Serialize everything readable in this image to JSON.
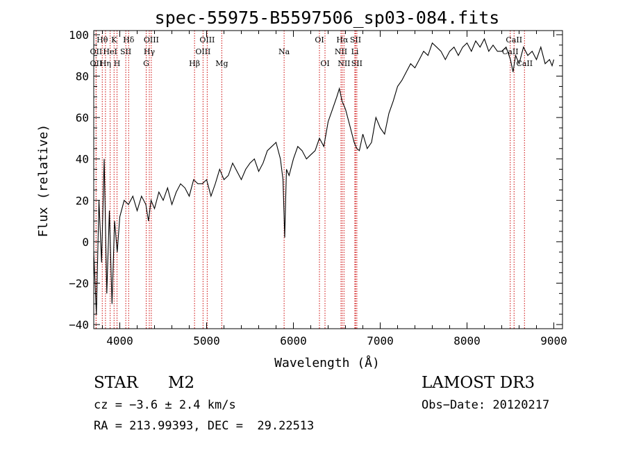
{
  "chart_data": {
    "type": "line",
    "title": "spec-55975-B5597506_sp03-084.fits",
    "xlabel": "Wavelength (Å)",
    "ylabel": "Flux (relative)",
    "xlim": [
      3700,
      9100
    ],
    "ylim": [
      -42,
      102
    ],
    "xticks": [
      4000,
      5000,
      6000,
      7000,
      8000,
      9000
    ],
    "yticks": [
      -40,
      -20,
      0,
      20,
      40,
      60,
      80,
      100
    ],
    "grid": false,
    "line_color": "#000000",
    "marker_color": "#cc0000",
    "series": [
      {
        "name": "spectrum",
        "x": [
          3700,
          3730,
          3760,
          3790,
          3820,
          3850,
          3880,
          3910,
          3940,
          3970,
          4000,
          4050,
          4100,
          4150,
          4200,
          4250,
          4300,
          4330,
          4360,
          4400,
          4450,
          4500,
          4550,
          4600,
          4650,
          4700,
          4750,
          4800,
          4850,
          4900,
          4950,
          5000,
          5050,
          5100,
          5150,
          5200,
          5250,
          5300,
          5350,
          5400,
          5450,
          5500,
          5550,
          5600,
          5650,
          5700,
          5750,
          5800,
          5850,
          5880,
          5900,
          5910,
          5920,
          5950,
          6000,
          6050,
          6100,
          6150,
          6200,
          6250,
          6300,
          6350,
          6400,
          6450,
          6500,
          6530,
          6560,
          6600,
          6650,
          6700,
          6730,
          6760,
          6800,
          6850,
          6900,
          6950,
          7000,
          7050,
          7100,
          7150,
          7200,
          7250,
          7300,
          7350,
          7400,
          7450,
          7500,
          7550,
          7600,
          7650,
          7700,
          7750,
          7800,
          7850,
          7900,
          7950,
          8000,
          8050,
          8100,
          8150,
          8200,
          8250,
          8300,
          8350,
          8400,
          8450,
          8500,
          8530,
          8560,
          8600,
          8650,
          8700,
          8750,
          8800,
          8850,
          8900,
          8950,
          8980,
          9000
        ],
        "y": [
          -5,
          -35,
          20,
          -10,
          40,
          -25,
          15,
          -30,
          10,
          -5,
          12,
          20,
          18,
          22,
          15,
          22,
          18,
          10,
          20,
          16,
          24,
          20,
          26,
          18,
          24,
          28,
          26,
          22,
          30,
          28,
          28,
          30,
          22,
          28,
          35,
          30,
          32,
          38,
          34,
          30,
          35,
          38,
          40,
          34,
          38,
          44,
          46,
          48,
          40,
          30,
          2,
          20,
          35,
          32,
          40,
          46,
          44,
          40,
          42,
          44,
          50,
          46,
          58,
          64,
          70,
          74,
          68,
          64,
          56,
          48,
          45,
          44,
          52,
          45,
          48,
          60,
          55,
          52,
          62,
          68,
          75,
          78,
          82,
          86,
          84,
          88,
          92,
          90,
          96,
          94,
          92,
          88,
          92,
          94,
          90,
          94,
          96,
          92,
          97,
          94,
          98,
          92,
          95,
          92,
          92,
          94,
          88,
          82,
          90,
          86,
          94,
          90,
          92,
          88,
          94,
          86,
          88,
          85,
          88
        ]
      }
    ],
    "line_markers": [
      {
        "label": "Hθ",
        "wl": 3798,
        "row": 1
      },
      {
        "label": "OII",
        "wl": 3727,
        "row": 2
      },
      {
        "label": "OII",
        "wl": 3727,
        "row": 3
      },
      {
        "label": "K",
        "wl": 3934,
        "row": 1
      },
      {
        "label": "HeI",
        "wl": 3889,
        "row": 2
      },
      {
        "label": "Hη",
        "wl": 3835,
        "row": 3
      },
      {
        "label": "SII",
        "wl": 4069,
        "row": 2
      },
      {
        "label": "H",
        "wl": 3968,
        "row": 3
      },
      {
        "label": "Hδ",
        "wl": 4102,
        "row": 1
      },
      {
        "label": "OIII",
        "wl": 4363,
        "row": 1
      },
      {
        "label": "Hγ",
        "wl": 4340,
        "row": 2
      },
      {
        "label": "G",
        "wl": 4304,
        "row": 3
      },
      {
        "label": "Hβ",
        "wl": 4861,
        "row": 3
      },
      {
        "label": "OIII",
        "wl": 5007,
        "row": 1
      },
      {
        "label": "OIII",
        "wl": 4959,
        "row": 2
      },
      {
        "label": "Mg",
        "wl": 5175,
        "row": 3
      },
      {
        "label": "Na",
        "wl": 5893,
        "row": 2
      },
      {
        "label": "OI",
        "wl": 6300,
        "row": 1
      },
      {
        "label": "OI",
        "wl": 6364,
        "row": 3
      },
      {
        "label": "Hα",
        "wl": 6563,
        "row": 1
      },
      {
        "label": "SII",
        "wl": 6716,
        "row": 1
      },
      {
        "label": "NII",
        "wl": 6548,
        "row": 2
      },
      {
        "label": "Li",
        "wl": 6708,
        "row": 2
      },
      {
        "label": "NII",
        "wl": 6583,
        "row": 3
      },
      {
        "label": "SII",
        "wl": 6731,
        "row": 3
      },
      {
        "label": "CaII",
        "wl": 8542,
        "row": 1
      },
      {
        "label": "CaII",
        "wl": 8498,
        "row": 2
      },
      {
        "label": "CaII",
        "wl": 8662,
        "row": 3
      }
    ]
  },
  "info": {
    "class": "STAR",
    "subclass": "M2",
    "survey": "LAMOST DR3",
    "cz": "cz = −3.6 ± 2.4 km/s",
    "obs_date": "Obs−Date: 20120217",
    "coords": "RA = 213.99393, DEC =  29.22513"
  }
}
